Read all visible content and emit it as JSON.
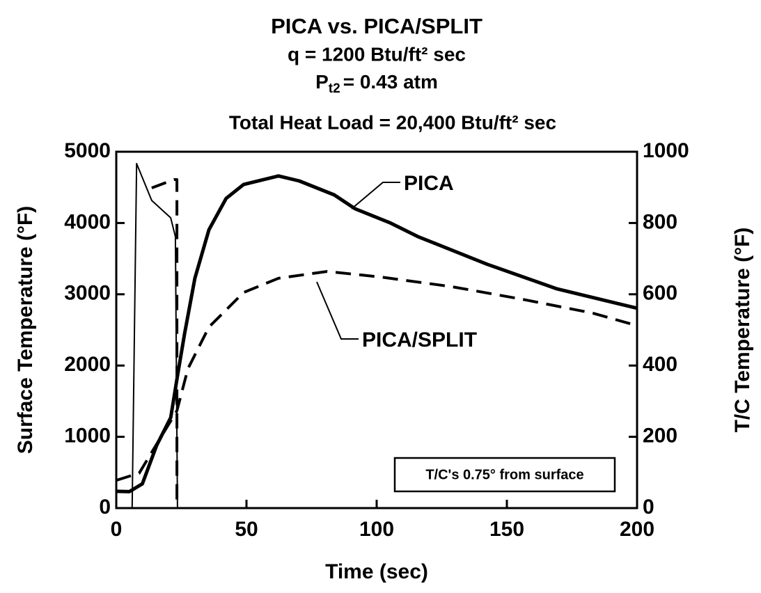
{
  "chart_data": {
    "type": "line",
    "title": "PICA vs. PICA/SPLIT",
    "subtitle": "q = 1200 Btu/ft² sec",
    "pressure_symbol": "P",
    "pressure_subscript": "t2",
    "pressure_value": "= 0.43 atm",
    "heat_load": "Total Heat Load = 20,400 Btu/ft² sec",
    "x_label": "Time (sec)",
    "y_label": "Surface Temperature (°F)",
    "y2_label": "T/C Temperature (°F)",
    "note": "T/C's 0.75° from surface",
    "xlim": [
      0,
      200
    ],
    "xticks": [
      0,
      50,
      100,
      150,
      200
    ],
    "ylim": [
      0,
      5000
    ],
    "yticks": [
      0,
      1000,
      2000,
      3000,
      4000,
      5000
    ],
    "y2lim": [
      0,
      1000
    ],
    "y2ticks": [
      0,
      200,
      400,
      600,
      800,
      1000
    ],
    "series": [
      {
        "color": "#000000",
        "style": "thin",
        "x": [
          6.1,
          7.8,
          13.6,
          20.9,
          22.7,
          23.5
        ],
        "values": [
          0,
          4834,
          4316,
          4072,
          3809,
          0
        ]
      },
      {
        "color": "#000000",
        "style": "dash",
        "x": [
          13.6,
          22.2,
          23.3,
          23.3
        ],
        "values": [
          4492,
          4609,
          4609,
          0
        ]
      },
      {
        "name": "PICA",
        "axis": "y2",
        "color": "#000000",
        "style": "thick",
        "x": [
          0,
          5,
          10,
          15.5,
          20.9,
          23.5,
          26.2,
          30.2,
          35.6,
          42.2,
          48.9,
          62.3,
          70.3,
          83.7,
          91.7,
          105,
          115.8,
          142.5,
          169.3,
          200
        ],
        "values": [
          47,
          46,
          68,
          176,
          254,
          371,
          488,
          645,
          781,
          869,
          908,
          932,
          918,
          879,
          840,
          801,
          762,
          684,
          615,
          561
        ]
      },
      {
        "name": "PICA/SPLIT",
        "axis": "y2",
        "color": "#000000",
        "style": "dash",
        "x": [
          0,
          8.8,
          16.8,
          23.3,
          27.5,
          35.6,
          48.9,
          62.3,
          81,
          102,
          129,
          156,
          183,
          200
        ],
        "values": [
          78,
          98,
          195,
          273,
          391,
          508,
          605,
          645,
          664,
          648,
          621,
          586,
          547,
          512
        ]
      }
    ]
  }
}
